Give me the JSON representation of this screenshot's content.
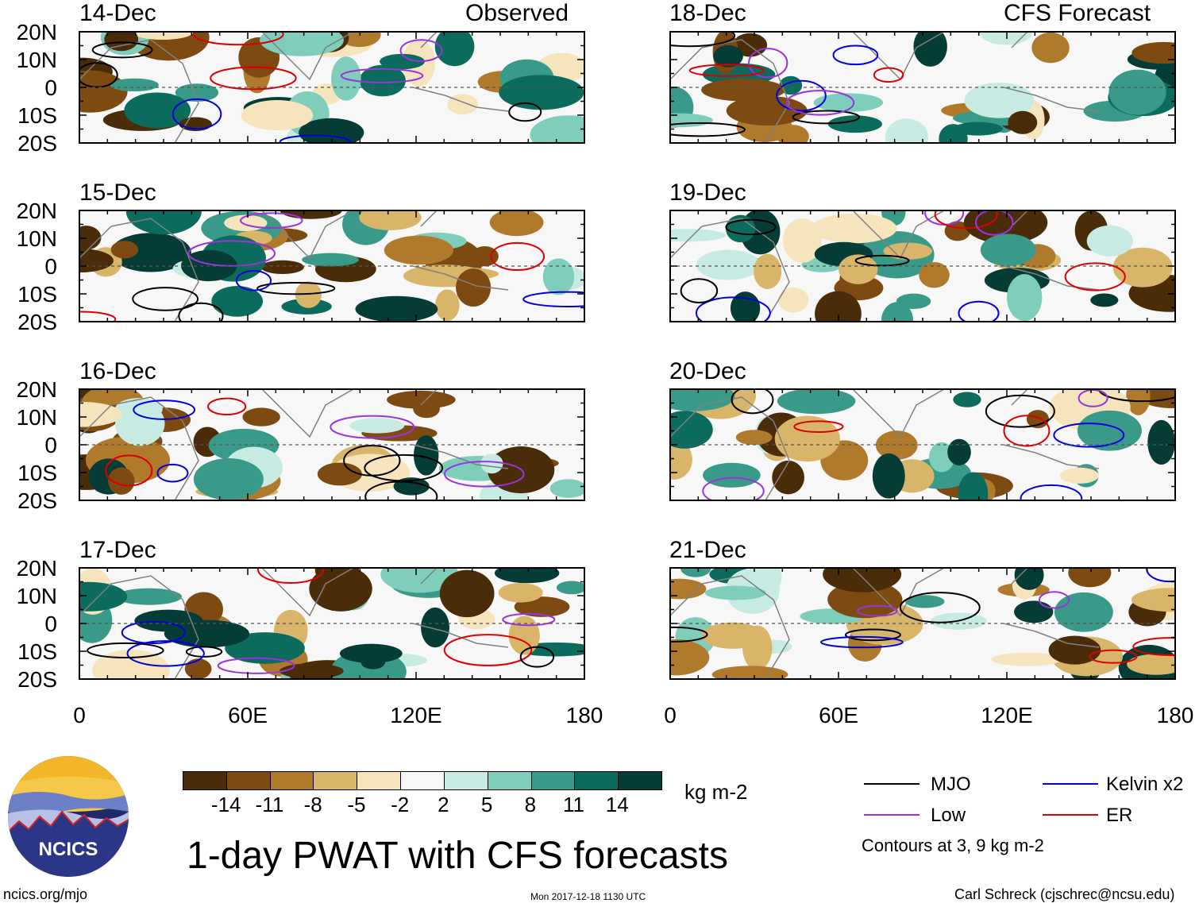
{
  "title": "1-day PWAT with CFS forecasts",
  "labels": {
    "observed": "Observed",
    "forecast": "CFS Forecast"
  },
  "observed_panels": [
    "14-Dec",
    "15-Dec",
    "16-Dec",
    "17-Dec"
  ],
  "forecast_panels": [
    "18-Dec",
    "19-Dec",
    "20-Dec",
    "21-Dec"
  ],
  "lat_ticks": [
    "20N",
    "10N",
    "0",
    "10S",
    "20S"
  ],
  "lon_ticks": [
    "0",
    "60E",
    "120E",
    "180"
  ],
  "colorbar": {
    "ticks": [
      "-14",
      "-11",
      "-8",
      "-5",
      "-2",
      "2",
      "5",
      "8",
      "11",
      "14"
    ],
    "unit": "kg m-2",
    "colors": [
      "#4a2c08",
      "#7d4a12",
      "#b07a2c",
      "#d9b56a",
      "#f6e4bd",
      "#f7f7f7",
      "#c7ebe3",
      "#7fcdbb",
      "#3a9a8a",
      "#0b6b5c",
      "#053c35"
    ]
  },
  "legend": {
    "items": [
      {
        "label": "MJO",
        "color": "#000000"
      },
      {
        "label": "Kelvin x2",
        "color": "#0000dd"
      },
      {
        "label": "Low",
        "color": "#9933dd"
      },
      {
        "label": "ER",
        "color": "#dd0000"
      }
    ],
    "note": "Contours at 3, 9 kg m-2"
  },
  "logo": {
    "text": "NCICS"
  },
  "footer": {
    "url": "ncics.org/mjo",
    "timestamp": "Mon 2017-12-18 1130 UTC",
    "credit": "Carl Schreck (cjschrec@ncsu.edu)"
  }
}
